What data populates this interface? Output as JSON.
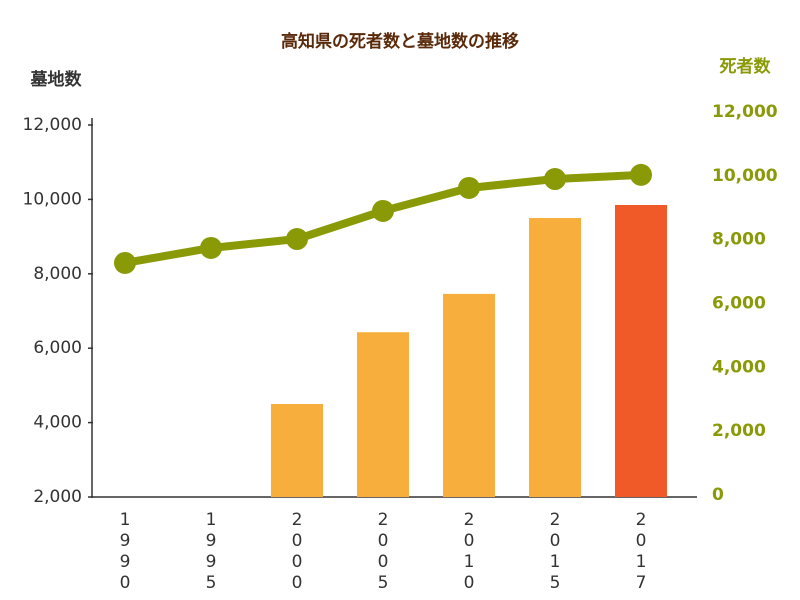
{
  "chart_data": {
    "type": "bar",
    "title": "高知県の死者数と墓地数の推移",
    "y_label": "墓地数",
    "y2_label": "死者数",
    "categories": [
      "1990",
      "1995",
      "2000",
      "2005",
      "2010",
      "2015",
      "2017"
    ],
    "series": [
      {
        "name": "墓地数",
        "type": "bar",
        "colors": [
          "#f8ae3c",
          "#f8ae3c",
          "#f8ae3c",
          "#f8ae3c",
          "#f8ae3c",
          "#f8ae3c",
          "#ef5a28"
        ],
        "values": [
          null,
          null,
          4500,
          6430,
          7460,
          9500,
          9850
        ]
      },
      {
        "name": "死者数",
        "type": "line",
        "axis": "y2",
        "color": "#8a9a06",
        "values": [
          7270,
          7740,
          8020,
          8900,
          9620,
          9900,
          10030
        ]
      }
    ],
    "ylim": [
      2000,
      12000
    ],
    "yticks": [
      {
        "value": 2000,
        "label": "2,000"
      },
      {
        "value": 4000,
        "label": "4,000"
      },
      {
        "value": 6000,
        "label": "6,000"
      },
      {
        "value": 8000,
        "label": "8,000"
      },
      {
        "value": 10000,
        "label": "10,000"
      },
      {
        "value": 12000,
        "label": "12,000"
      }
    ],
    "y2lim": [
      0,
      12000
    ],
    "y2ticks": [
      0,
      {
        "value": 2000,
        "label": "2,000"
      },
      {
        "value": 4000,
        "label": "4,000"
      },
      {
        "value": 6000,
        "label": "6,000"
      },
      {
        "value": 8000,
        "label": "8,000"
      },
      {
        "value": 10000,
        "label": "10,000"
      },
      {
        "value": 12000,
        "label": "12,000"
      }
    ]
  }
}
